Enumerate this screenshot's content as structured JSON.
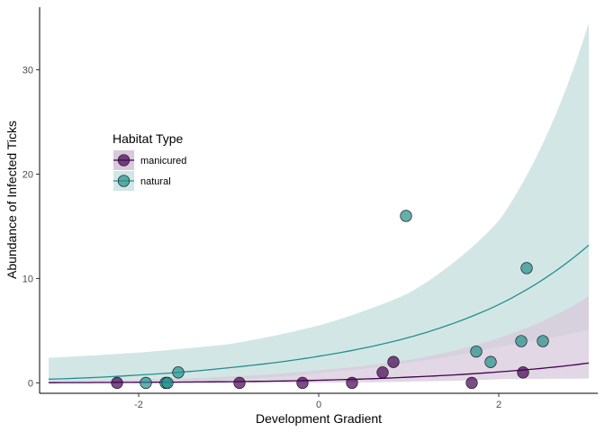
{
  "chart_data": {
    "type": "scatter",
    "xlabel": "Development Gradient",
    "ylabel": "Abundance of Infected Ticks",
    "xlim": [
      -3.1,
      3.1
    ],
    "ylim": [
      -1.0,
      36.0
    ],
    "x_ticks": [
      -2,
      0,
      2
    ],
    "x_tick_labels": [
      "-2",
      "0",
      "2"
    ],
    "y_ticks": [
      0,
      10,
      20,
      30
    ],
    "y_tick_labels": [
      "0",
      "10",
      "20",
      "30"
    ],
    "grid": false,
    "legend": {
      "title": "Habitat Type",
      "placement": "left-middle",
      "entries": [
        "manicured",
        "natural"
      ]
    },
    "colors": {
      "manicured": "#440154",
      "natural": "#21908C",
      "manicured_ribbon": "#D8C9DB",
      "natural_ribbon": "#D3E6E6",
      "overlap_ribbon": "#B8C1C5"
    },
    "series": [
      {
        "name": "manicured",
        "points": [
          {
            "x": -2.24,
            "y": 0
          },
          {
            "x": -0.88,
            "y": 0
          },
          {
            "x": -0.18,
            "y": 0
          },
          {
            "x": 0.37,
            "y": 0
          },
          {
            "x": 0.71,
            "y": 1
          },
          {
            "x": 0.83,
            "y": 2
          },
          {
            "x": 1.7,
            "y": 0
          },
          {
            "x": 2.27,
            "y": 1
          }
        ],
        "fit": {
          "x": [
            -3.0,
            -2.0,
            -1.0,
            0.0,
            1.0,
            2.0,
            3.0
          ],
          "y": [
            0.02,
            0.05,
            0.11,
            0.25,
            0.55,
            1.05,
            1.9
          ],
          "lower": [
            0.0,
            0.0,
            0.0,
            0.02,
            0.12,
            0.35,
            0.42
          ],
          "upper": [
            0.15,
            0.3,
            0.6,
            1.2,
            2.2,
            4.3,
            8.3
          ]
        }
      },
      {
        "name": "natural",
        "points": [
          {
            "x": -1.92,
            "y": 0
          },
          {
            "x": -1.7,
            "y": 0
          },
          {
            "x": -1.68,
            "y": 0
          },
          {
            "x": -1.56,
            "y": 1
          },
          {
            "x": 0.97,
            "y": 16
          },
          {
            "x": 1.75,
            "y": 3
          },
          {
            "x": 1.91,
            "y": 2
          },
          {
            "x": 2.25,
            "y": 4
          },
          {
            "x": 2.31,
            "y": 11
          },
          {
            "x": 2.49,
            "y": 4
          }
        ],
        "fit": {
          "x": [
            -3.0,
            -2.0,
            -1.0,
            0.0,
            1.0,
            2.0,
            3.0
          ],
          "y": [
            0.35,
            0.75,
            1.45,
            2.55,
            4.35,
            7.5,
            13.2
          ],
          "lower": [
            0.0,
            0.0,
            0.3,
            0.95,
            1.95,
            3.45,
            5.1
          ],
          "upper": [
            2.4,
            2.9,
            3.7,
            5.5,
            8.6,
            15.5,
            34.5
          ]
        }
      }
    ]
  }
}
